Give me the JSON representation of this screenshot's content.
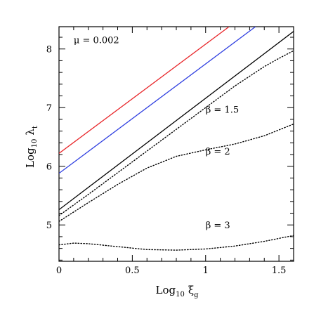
{
  "chart_data": {
    "type": "line",
    "xlim": [
      0,
      1.6
    ],
    "ylim": [
      4.38,
      8.38
    ],
    "x_ticks": [
      {
        "value": 0,
        "label": "0"
      },
      {
        "value": 0.5,
        "label": "0.5"
      },
      {
        "value": 1,
        "label": "1"
      },
      {
        "value": 1.5,
        "label": "1.5"
      }
    ],
    "y_ticks": [
      {
        "value": 5,
        "label": "5"
      },
      {
        "value": 6,
        "label": "6"
      },
      {
        "value": 7,
        "label": "7"
      },
      {
        "value": 8,
        "label": "8"
      }
    ],
    "x_minor_step": 0.1,
    "y_minor_step": 0.2,
    "xlabel": {
      "prefix": "Log",
      "base": "10",
      "symbol": "ξ",
      "subscript": "g"
    },
    "ylabel": {
      "prefix": "Log",
      "base": "10",
      "symbol": "λ",
      "subscript": "t"
    },
    "title": "",
    "grid": false,
    "annotations": [
      {
        "id": "mu",
        "text": "μ = 0.002",
        "x": 0.1,
        "y": 8.1
      },
      {
        "id": "b15",
        "text": "β = 1.5",
        "x": 1.0,
        "y": 6.91
      },
      {
        "id": "b2",
        "text": "β = 2",
        "x": 1.0,
        "y": 6.2
      },
      {
        "id": "b3",
        "text": "β = 3",
        "x": 1.0,
        "y": 4.94
      }
    ],
    "series": [
      {
        "id": "red",
        "color": "#e8262a",
        "dash": "solid",
        "x": [
          0,
          1.16
        ],
        "y": [
          6.22,
          8.38
        ]
      },
      {
        "id": "blue",
        "color": "#2f3fe0",
        "dash": "solid",
        "x": [
          0,
          1.34
        ],
        "y": [
          5.88,
          8.38
        ]
      },
      {
        "id": "black",
        "color": "#000000",
        "dash": "solid",
        "x": [
          0,
          1.6
        ],
        "y": [
          5.26,
          8.3
        ]
      },
      {
        "id": "dot-b15",
        "color": "#000000",
        "dash": "dotted",
        "x": [
          0,
          0.2,
          0.4,
          0.6,
          0.8,
          1.0,
          1.2,
          1.4,
          1.5,
          1.6
        ],
        "y": [
          5.16,
          5.52,
          5.89,
          6.26,
          6.63,
          7.0,
          7.37,
          7.7,
          7.84,
          7.97
        ]
      },
      {
        "id": "dot-b2",
        "color": "#000000",
        "dash": "dotted",
        "x": [
          0,
          0.2,
          0.4,
          0.6,
          0.8,
          1.0,
          1.2,
          1.4,
          1.6
        ],
        "y": [
          5.06,
          5.38,
          5.69,
          5.97,
          6.17,
          6.28,
          6.38,
          6.52,
          6.72
        ]
      },
      {
        "id": "dot-b3",
        "color": "#000000",
        "dash": "dotted",
        "x": [
          0,
          0.1,
          0.2,
          0.4,
          0.6,
          0.8,
          1.0,
          1.2,
          1.4,
          1.6
        ],
        "y": [
          4.66,
          4.69,
          4.68,
          4.63,
          4.58,
          4.57,
          4.59,
          4.64,
          4.72,
          4.82
        ]
      }
    ]
  }
}
